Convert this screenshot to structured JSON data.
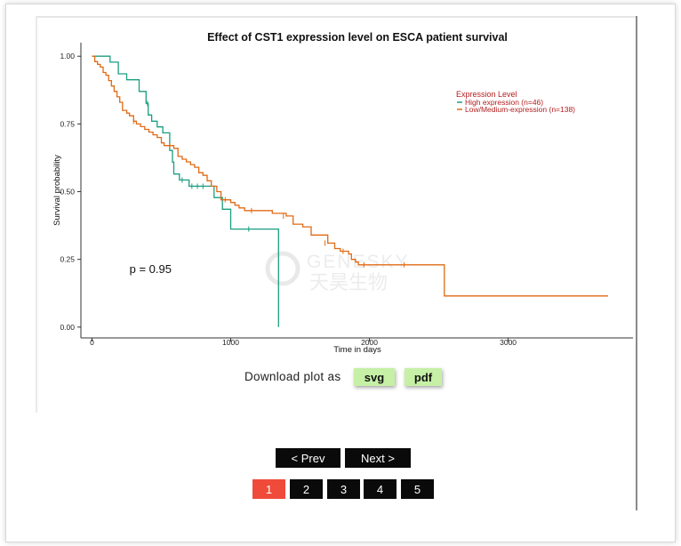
{
  "chart_data": {
    "type": "line",
    "title": "Effect of CST1 expression level on ESCA patient survival",
    "xlabel": "Time in days",
    "ylabel": "Survival probability",
    "xlim": [
      -80,
      3900
    ],
    "ylim": [
      -0.04,
      1.05
    ],
    "x_ticks": [
      0,
      1000,
      2000,
      3000
    ],
    "x_tick_labels": [
      "0",
      "1000",
      "2000",
      "3000"
    ],
    "y_ticks": [
      0,
      0.25,
      0.5,
      0.75,
      1.0
    ],
    "y_tick_labels": [
      "0.00",
      "0.25",
      "0.50",
      "0.75",
      "1.00"
    ],
    "grid": false,
    "legend_title": "Expression Level",
    "legend_position": "top-right",
    "annotation": "p = 0.95",
    "annotation_position": [
      270,
      0.2
    ],
    "watermark": [
      "GENESKY",
      "天昊生物"
    ],
    "series": [
      {
        "name": "High expression (n=46)",
        "color": "#1a9e80",
        "points": [
          [
            0,
            1.0
          ],
          [
            130,
            1.0
          ],
          [
            130,
            0.978
          ],
          [
            190,
            0.978
          ],
          [
            190,
            0.935
          ],
          [
            250,
            0.935
          ],
          [
            250,
            0.913
          ],
          [
            340,
            0.913
          ],
          [
            340,
            0.87
          ],
          [
            390,
            0.87
          ],
          [
            390,
            0.826
          ],
          [
            405,
            0.826
          ],
          [
            405,
            0.783
          ],
          [
            430,
            0.783
          ],
          [
            430,
            0.76
          ],
          [
            470,
            0.76
          ],
          [
            470,
            0.739
          ],
          [
            510,
            0.739
          ],
          [
            510,
            0.717
          ],
          [
            560,
            0.717
          ],
          [
            560,
            0.652
          ],
          [
            580,
            0.652
          ],
          [
            580,
            0.609
          ],
          [
            590,
            0.609
          ],
          [
            590,
            0.565
          ],
          [
            630,
            0.565
          ],
          [
            630,
            0.543
          ],
          [
            700,
            0.543
          ],
          [
            700,
            0.52
          ],
          [
            880,
            0.52
          ],
          [
            880,
            0.478
          ],
          [
            940,
            0.478
          ],
          [
            940,
            0.435
          ],
          [
            1000,
            0.435
          ],
          [
            1000,
            0.362
          ],
          [
            1345,
            0.362
          ],
          [
            1345,
            0.0
          ]
        ],
        "censors": [
          [
            400,
            0.826
          ],
          [
            650,
            0.543
          ],
          [
            720,
            0.52
          ],
          [
            760,
            0.52
          ],
          [
            800,
            0.52
          ],
          [
            1130,
            0.362
          ]
        ]
      },
      {
        "name": "Low/Medium-expression (n=138)",
        "color": "#e06a14",
        "points": [
          [
            0,
            1.0
          ],
          [
            20,
            0.98
          ],
          [
            40,
            0.97
          ],
          [
            60,
            0.96
          ],
          [
            80,
            0.94
          ],
          [
            100,
            0.93
          ],
          [
            120,
            0.91
          ],
          [
            140,
            0.89
          ],
          [
            160,
            0.87
          ],
          [
            180,
            0.85
          ],
          [
            200,
            0.83
          ],
          [
            220,
            0.8
          ],
          [
            250,
            0.79
          ],
          [
            270,
            0.78
          ],
          [
            300,
            0.76
          ],
          [
            320,
            0.75
          ],
          [
            350,
            0.74
          ],
          [
            380,
            0.73
          ],
          [
            410,
            0.72
          ],
          [
            440,
            0.71
          ],
          [
            470,
            0.7
          ],
          [
            500,
            0.68
          ],
          [
            520,
            0.67
          ],
          [
            550,
            0.67
          ],
          [
            590,
            0.66
          ],
          [
            620,
            0.63
          ],
          [
            650,
            0.62
          ],
          [
            680,
            0.61
          ],
          [
            710,
            0.6
          ],
          [
            740,
            0.59
          ],
          [
            770,
            0.57
          ],
          [
            800,
            0.56
          ],
          [
            830,
            0.54
          ],
          [
            860,
            0.52
          ],
          [
            900,
            0.5
          ],
          [
            930,
            0.47
          ],
          [
            960,
            0.47
          ],
          [
            1000,
            0.46
          ],
          [
            1030,
            0.45
          ],
          [
            1060,
            0.44
          ],
          [
            1100,
            0.43
          ],
          [
            1250,
            0.43
          ],
          [
            1300,
            0.42
          ],
          [
            1400,
            0.41
          ],
          [
            1450,
            0.38
          ],
          [
            1520,
            0.37
          ],
          [
            1580,
            0.34
          ],
          [
            1700,
            0.31
          ],
          [
            1750,
            0.29
          ],
          [
            1790,
            0.28
          ],
          [
            1850,
            0.27
          ],
          [
            1870,
            0.25
          ],
          [
            1900,
            0.24
          ],
          [
            1920,
            0.23
          ],
          [
            2540,
            0.23
          ],
          [
            2540,
            0.115
          ],
          [
            3720,
            0.115
          ]
        ],
        "censors": [
          [
            300,
            0.76
          ],
          [
            560,
            0.67
          ],
          [
            960,
            0.47
          ],
          [
            1150,
            0.43
          ],
          [
            1380,
            0.41
          ],
          [
            1680,
            0.31
          ],
          [
            1810,
            0.28
          ],
          [
            1960,
            0.23
          ],
          [
            2250,
            0.23
          ]
        ]
      }
    ]
  },
  "download": {
    "label": "Download plot as",
    "svg_label": "svg",
    "pdf_label": "pdf"
  },
  "pagination": {
    "prev_label": "< Prev",
    "next_label": "Next >",
    "pages": [
      "1",
      "2",
      "3",
      "4",
      "5"
    ],
    "active_page": "1"
  }
}
